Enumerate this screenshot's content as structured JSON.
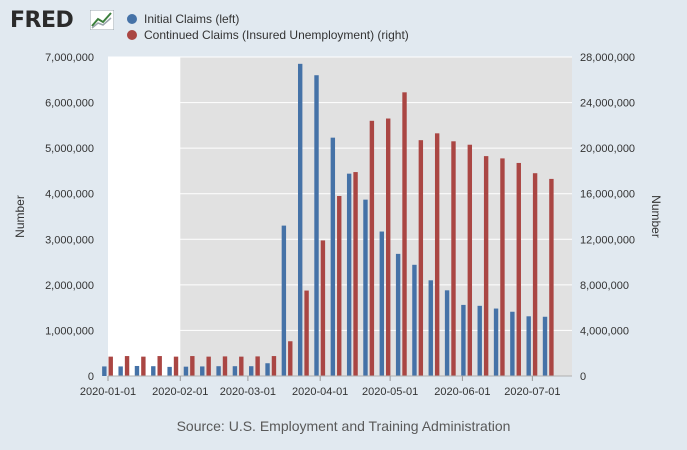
{
  "logo_text": "FRED",
  "logo_graph_icon": "line-chart-icon",
  "legend": [
    {
      "label": "Initial Claims (left)",
      "color": "#4572a7"
    },
    {
      "label": "Continued Claims (Insured Unemployment) (right)",
      "color": "#aa4643"
    }
  ],
  "source": "Source: U.S. Employment and Training Administration",
  "chart_data": {
    "type": "bar",
    "ylabel": "Number",
    "y2label": "Number",
    "ylim": [
      0,
      7000000
    ],
    "y2lim": [
      0,
      28000000
    ],
    "y_ticks": [
      "0",
      "1,000,000",
      "2,000,000",
      "3,000,000",
      "4,000,000",
      "5,000,000",
      "6,000,000",
      "7,000,000"
    ],
    "y2_ticks": [
      "0",
      "4,000,000",
      "8,000,000",
      "12,000,000",
      "16,000,000",
      "20,000,000",
      "24,000,000",
      "28,000,000"
    ],
    "x_tick_labels": [
      "2020-01-01",
      "2020-02-01",
      "2020-03-01",
      "2020-04-01",
      "2020-05-01",
      "2020-06-01",
      "2020-07-01"
    ],
    "grid": true,
    "recession_shading": {
      "start": "2020-02-01",
      "end": "2020-07-18",
      "color": "#e1e1e1"
    },
    "categories": [
      "2020-01-04",
      "2020-01-11",
      "2020-01-18",
      "2020-01-25",
      "2020-02-01",
      "2020-02-08",
      "2020-02-15",
      "2020-02-22",
      "2020-02-29",
      "2020-03-07",
      "2020-03-14",
      "2020-03-21",
      "2020-03-28",
      "2020-04-04",
      "2020-04-11",
      "2020-04-18",
      "2020-04-25",
      "2020-05-02",
      "2020-05-09",
      "2020-05-16",
      "2020-05-23",
      "2020-05-30",
      "2020-06-06",
      "2020-06-13",
      "2020-06-20",
      "2020-06-27",
      "2020-07-04",
      "2020-07-11"
    ],
    "series": [
      {
        "name": "Initial Claims (left)",
        "axis": "left",
        "color": "#4572a7",
        "values": [
          210000,
          210000,
          220000,
          215000,
          200000,
          205000,
          210000,
          215000,
          215000,
          215000,
          280000,
          3300000,
          6850000,
          6600000,
          5230000,
          4440000,
          3870000,
          3170000,
          2680000,
          2440000,
          2100000,
          1880000,
          1560000,
          1540000,
          1480000,
          1410000,
          1310000,
          1300000
        ]
      },
      {
        "name": "Continued Claims (Insured Unemployment) (right)",
        "axis": "right",
        "color": "#aa4643",
        "values": [
          1700000,
          1750000,
          1700000,
          1750000,
          1700000,
          1750000,
          1700000,
          1720000,
          1700000,
          1720000,
          1750000,
          3050000,
          7500000,
          11900000,
          15800000,
          17900000,
          22400000,
          22600000,
          24900000,
          20700000,
          21300000,
          20600000,
          20300000,
          19300000,
          19100000,
          18700000,
          17800000,
          17300000
        ]
      }
    ]
  }
}
